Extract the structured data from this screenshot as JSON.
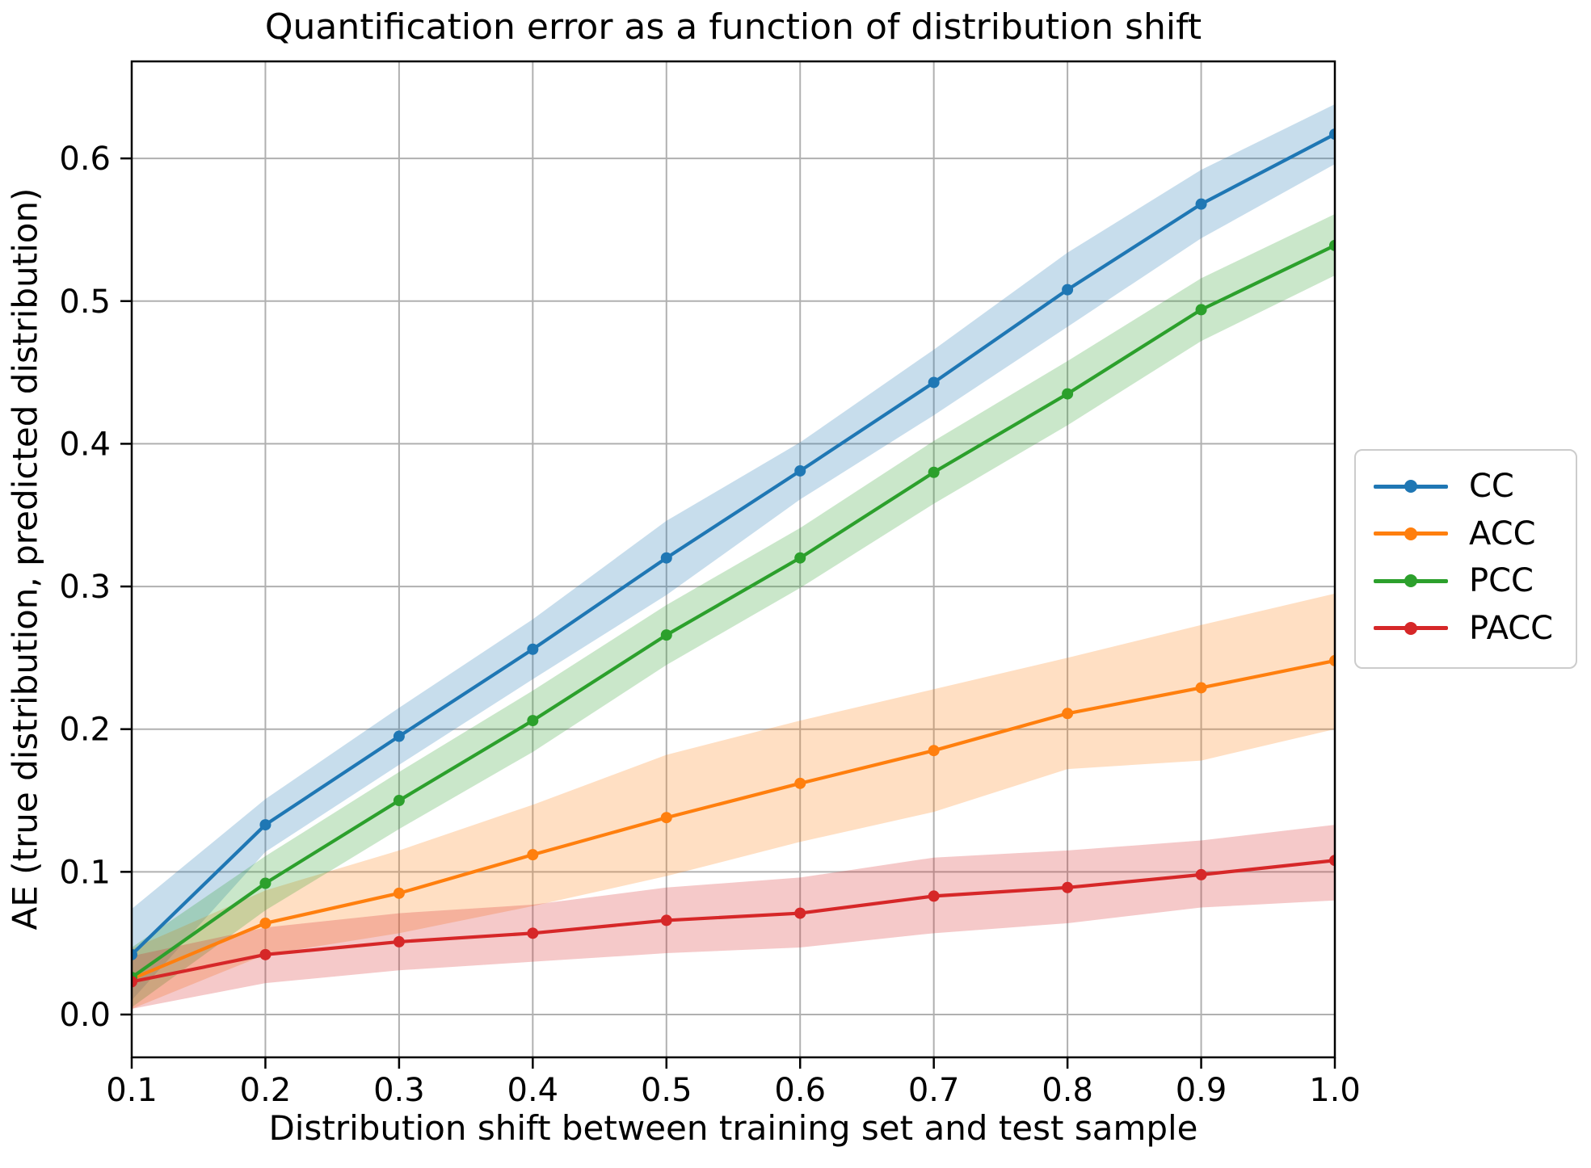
{
  "chart_data": {
    "type": "line",
    "title": "Quantification error as a function of distribution shift",
    "xlabel": "Distribution shift between training set and test sample",
    "ylabel": "AE (true distribution, predicted distribution)",
    "x": [
      0.1,
      0.2,
      0.3,
      0.4,
      0.5,
      0.6,
      0.7,
      0.8,
      0.9,
      1.0
    ],
    "xlim": [
      0.1,
      1.0
    ],
    "ylim": [
      -0.03,
      0.668
    ],
    "xticks": [
      "0.1",
      "0.2",
      "0.3",
      "0.4",
      "0.5",
      "0.6",
      "0.7",
      "0.8",
      "0.9",
      "1.0"
    ],
    "yticks": [
      "0.0",
      "0.1",
      "0.2",
      "0.3",
      "0.4",
      "0.5",
      "0.6"
    ],
    "grid": true,
    "grid_color": "#b0b0b0",
    "band_alpha": 0.25,
    "legend_position": "center right, outside axes",
    "series": [
      {
        "name": "CC",
        "color": "#1f77b4",
        "values": [
          0.042,
          0.133,
          0.195,
          0.256,
          0.32,
          0.381,
          0.443,
          0.508,
          0.568,
          0.617
        ],
        "band_low": [
          0.01,
          0.114,
          0.175,
          0.235,
          0.294,
          0.361,
          0.42,
          0.482,
          0.544,
          0.596
        ],
        "band_high": [
          0.074,
          0.151,
          0.215,
          0.277,
          0.346,
          0.401,
          0.466,
          0.534,
          0.592,
          0.638
        ]
      },
      {
        "name": "ACC",
        "color": "#ff7f0e",
        "values": [
          0.025,
          0.064,
          0.085,
          0.112,
          0.138,
          0.162,
          0.185,
          0.211,
          0.229,
          0.248
        ],
        "band_low": [
          0.004,
          0.042,
          0.057,
          0.076,
          0.097,
          0.121,
          0.142,
          0.172,
          0.178,
          0.2
        ],
        "band_high": [
          0.046,
          0.087,
          0.115,
          0.147,
          0.182,
          0.206,
          0.228,
          0.25,
          0.273,
          0.295
        ]
      },
      {
        "name": "PCC",
        "color": "#2ca02c",
        "values": [
          0.026,
          0.092,
          0.15,
          0.206,
          0.266,
          0.32,
          0.38,
          0.435,
          0.494,
          0.539
        ],
        "band_low": [
          0.005,
          0.073,
          0.13,
          0.184,
          0.245,
          0.299,
          0.358,
          0.413,
          0.472,
          0.518
        ],
        "band_high": [
          0.047,
          0.111,
          0.17,
          0.227,
          0.287,
          0.341,
          0.402,
          0.458,
          0.516,
          0.561
        ]
      },
      {
        "name": "PACC",
        "color": "#d62728",
        "values": [
          0.023,
          0.042,
          0.051,
          0.057,
          0.066,
          0.071,
          0.083,
          0.089,
          0.098,
          0.108
        ],
        "band_low": [
          0.004,
          0.022,
          0.031,
          0.037,
          0.043,
          0.047,
          0.057,
          0.064,
          0.075,
          0.08
        ],
        "band_high": [
          0.041,
          0.061,
          0.071,
          0.077,
          0.089,
          0.096,
          0.11,
          0.115,
          0.122,
          0.133
        ]
      }
    ]
  }
}
